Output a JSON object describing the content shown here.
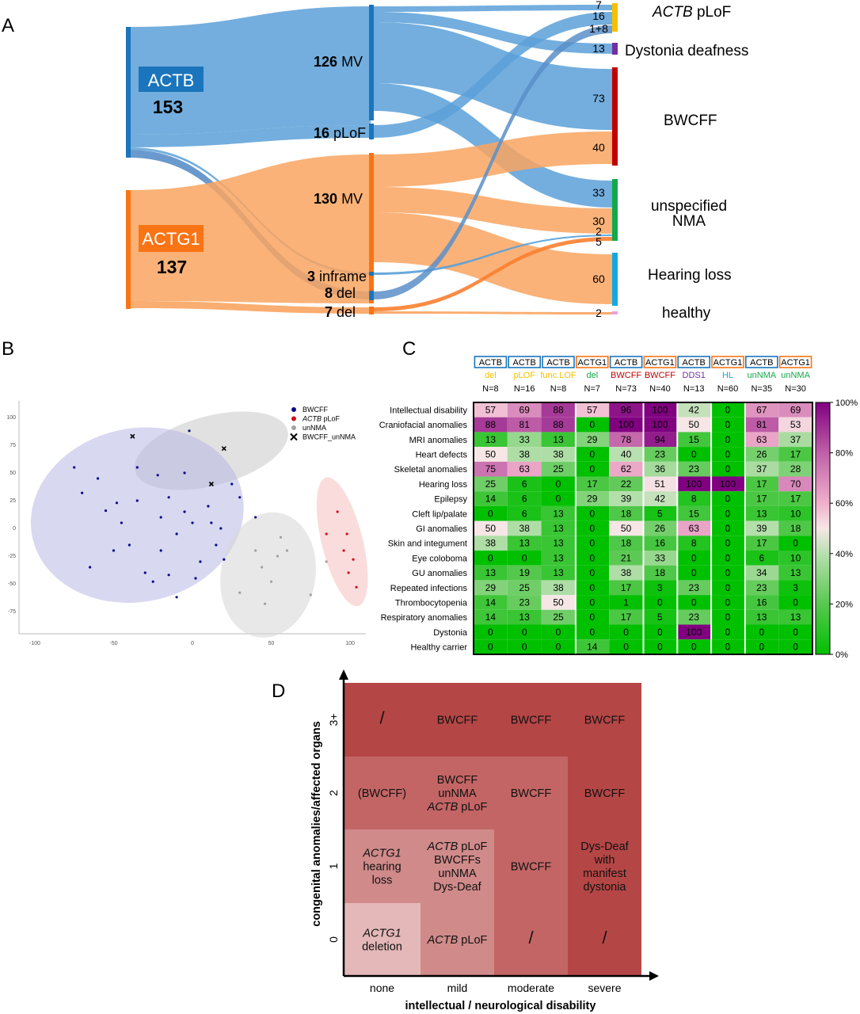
{
  "panels": {
    "a": "A",
    "b": "B",
    "c": "C",
    "d": "D"
  },
  "sankey": {
    "genes": [
      {
        "name": "ACTB",
        "count": "153",
        "color": "#1a75bc"
      },
      {
        "name": "ACTG1",
        "count": "137",
        "color": "#f97415"
      }
    ],
    "variants": [
      {
        "count": "126",
        "label": "MV"
      },
      {
        "count": "16",
        "label": "pLoF"
      },
      {
        "count": "130",
        "label": "MV"
      },
      {
        "count": "3",
        "label": "inframe"
      },
      {
        "count": "8",
        "label": "del"
      },
      {
        "count": "7",
        "label": "del"
      }
    ],
    "phenotypes": [
      {
        "label": "ACTB pLoF",
        "gene": "ACTB",
        "suffix": " pLoF",
        "color": "#f5c000"
      },
      {
        "label": "Dystonia deafness",
        "color": "#7030a0"
      },
      {
        "label": "BWCFF",
        "color": "#c00000"
      },
      {
        "label": "unspecified",
        "label2": "NMA",
        "color": "#13a84a"
      },
      {
        "label": "Hearing loss",
        "color": "#13a9e0"
      },
      {
        "label": "healthy",
        "color": "#e8a0e0"
      }
    ],
    "counts": [
      "7",
      "16",
      "1+8",
      "13",
      "73",
      "40",
      "33",
      "30",
      "2",
      "5",
      "60",
      "2"
    ]
  },
  "scatter": {
    "legend": [
      {
        "label": "BWCFF",
        "color": "#0a0a8a",
        "shape": "dot"
      },
      {
        "label": "ACTB pLoF",
        "italic": "ACTB",
        "rest": " pLoF",
        "color": "#d0101a",
        "shape": "dot"
      },
      {
        "label": "unNMA",
        "color": "#a0a0a0",
        "shape": "dot"
      },
      {
        "label": "BWCFF_unNMA",
        "color": "#000000",
        "shape": "cross"
      }
    ],
    "xticks": [
      "-100",
      "-50",
      "0",
      "50",
      "100"
    ],
    "yticks": [
      "100",
      "75",
      "50",
      "25",
      "0",
      "-25",
      "-50",
      "-75"
    ],
    "points": {
      "bwcff": [
        [
          -75,
          55
        ],
        [
          -70,
          32
        ],
        [
          -60,
          45
        ],
        [
          -55,
          16
        ],
        [
          -48,
          23
        ],
        [
          -45,
          5
        ],
        [
          -40,
          -15
        ],
        [
          -30,
          -40
        ],
        [
          -25,
          -48
        ],
        [
          -20,
          -20
        ],
        [
          -15,
          -42
        ],
        [
          -10,
          -5
        ],
        [
          -5,
          15
        ],
        [
          0,
          5
        ],
        [
          5,
          -30
        ],
        [
          10,
          20
        ],
        [
          15,
          -15
        ],
        [
          18,
          0
        ],
        [
          20,
          -28
        ],
        [
          25,
          40
        ],
        [
          -35,
          55
        ],
        [
          -22,
          48
        ],
        [
          -15,
          28
        ],
        [
          -5,
          50
        ],
        [
          -2,
          88
        ],
        [
          30,
          28
        ],
        [
          40,
          10
        ],
        [
          -65,
          -35
        ],
        [
          -50,
          -20
        ],
        [
          -35,
          25
        ],
        [
          -20,
          10
        ],
        [
          -10,
          -62
        ],
        [
          2,
          -45
        ],
        [
          12,
          5
        ]
      ],
      "actb_plof": [
        [
          85,
          -5
        ],
        [
          92,
          15
        ],
        [
          96,
          -20
        ],
        [
          98,
          -5
        ],
        [
          99,
          -40
        ],
        [
          102,
          -28
        ],
        [
          104,
          -53
        ]
      ],
      "unnma": [
        [
          40,
          -20
        ],
        [
          44,
          -35
        ],
        [
          46,
          -68
        ],
        [
          50,
          -48
        ],
        [
          54,
          -25
        ],
        [
          56,
          -8
        ],
        [
          30,
          -58
        ],
        [
          75,
          -60
        ],
        [
          85,
          -30
        ],
        [
          60,
          -20
        ]
      ],
      "cross": [
        [
          -38,
          83
        ],
        [
          20,
          72
        ],
        [
          12,
          40
        ]
      ]
    },
    "ellipses": {
      "grey_top": {
        "cx": 12,
        "cy": 70,
        "rx": 50,
        "ry": 22,
        "rot": -15
      },
      "blue": {
        "cx": -35,
        "cy": 12,
        "rx": 68,
        "ry": 55,
        "rot": -12
      },
      "grey": {
        "cx": 48,
        "cy": -42,
        "rx": 30,
        "ry": 40,
        "rot": 10
      },
      "red": {
        "cx": 95,
        "cy": -12,
        "rx": 13,
        "ry": 42,
        "rot": -14
      }
    }
  },
  "heatmap": {
    "columns": [
      {
        "gene": "ACTB",
        "type": "del",
        "n": "N=8",
        "type_color": "#f5c000",
        "box": "#1a75bc"
      },
      {
        "gene": "ACTB",
        "type": "pLOF",
        "n": "N=16",
        "type_color": "#f5c000",
        "box": "#1a75bc"
      },
      {
        "gene": "ACTB",
        "type": "func.LOF",
        "n": "N=8",
        "type_color": "#f5c000",
        "box": "#1a75bc"
      },
      {
        "gene": "ACTG1",
        "type": "del",
        "n": "N=7",
        "type_color": "#13a84a",
        "box": "#f97415"
      },
      {
        "gene": "ACTB",
        "type": "BWCFF",
        "n": "N=73",
        "type_color": "#c00000",
        "box": "#1a75bc"
      },
      {
        "gene": "ACTG1",
        "type": "BWCFF",
        "n": "N=40",
        "type_color": "#c00000",
        "box": "#f97415"
      },
      {
        "gene": "ACTB",
        "type": "DDS1",
        "n": "N=13",
        "type_color": "#7030a0",
        "box": "#1a75bc"
      },
      {
        "gene": "ACTG1",
        "type": "HL",
        "n": "N=60",
        "type_color": "#13a9e0",
        "box": "#f97415"
      },
      {
        "gene": "ACTB",
        "type": "unNMA",
        "n": "N=35",
        "type_color": "#13a84a",
        "box": "#1a75bc"
      },
      {
        "gene": "ACTG1",
        "type": "unNMA",
        "n": "N=30",
        "type_color": "#13a84a",
        "box": "#f97415"
      }
    ],
    "rows": [
      {
        "label": "Intellectual disability",
        "values": [
          57,
          69,
          88,
          57,
          96,
          100,
          42,
          0,
          67,
          69
        ]
      },
      {
        "label": "Craniofacial anomalies",
        "values": [
          88,
          81,
          88,
          0,
          100,
          100,
          50,
          0,
          81,
          53
        ]
      },
      {
        "label": "MRI anomalies",
        "values": [
          13,
          33,
          13,
          29,
          78,
          94,
          15,
          0,
          63,
          37
        ]
      },
      {
        "label": "Heart defects",
        "values": [
          50,
          38,
          38,
          0,
          40,
          23,
          0,
          0,
          26,
          17
        ]
      },
      {
        "label": "Skeletal anomalies",
        "values": [
          75,
          63,
          25,
          0,
          62,
          36,
          23,
          0,
          37,
          28
        ]
      },
      {
        "label": "Hearing loss",
        "values": [
          25,
          6,
          0,
          17,
          22,
          51,
          100,
          100,
          17,
          70
        ]
      },
      {
        "label": "Epilepsy",
        "values": [
          14,
          6,
          0,
          29,
          39,
          42,
          8,
          0,
          17,
          17
        ]
      },
      {
        "label": "Cleft lip/palate",
        "values": [
          0,
          6,
          13,
          0,
          18,
          5,
          15,
          0,
          13,
          10
        ]
      },
      {
        "label": "GI anomalies",
        "values": [
          50,
          38,
          13,
          0,
          50,
          26,
          63,
          0,
          39,
          18
        ]
      },
      {
        "label": "Skin and integument",
        "values": [
          38,
          13,
          13,
          0,
          18,
          16,
          8,
          0,
          17,
          0
        ]
      },
      {
        "label": "Eye coloboma",
        "values": [
          0,
          0,
          13,
          0,
          21,
          33,
          0,
          0,
          6,
          10
        ]
      },
      {
        "label": "GU anomalies",
        "values": [
          13,
          19,
          13,
          0,
          38,
          18,
          0,
          0,
          34,
          13
        ]
      },
      {
        "label": "Repeated infections",
        "values": [
          29,
          25,
          38,
          0,
          17,
          3,
          23,
          0,
          23,
          3
        ]
      },
      {
        "label": "Thrombocytopenia",
        "values": [
          14,
          23,
          50,
          0,
          1,
          0,
          0,
          0,
          16,
          0
        ]
      },
      {
        "label": "Respiratory anomalies",
        "values": [
          14,
          13,
          25,
          0,
          17,
          5,
          23,
          0,
          13,
          13
        ]
      },
      {
        "label": "Dystonia",
        "values": [
          0,
          0,
          0,
          0,
          0,
          0,
          100,
          0,
          0,
          0
        ]
      },
      {
        "label": "Healthy carrier",
        "values": [
          0,
          0,
          0,
          14,
          0,
          0,
          0,
          0,
          0,
          0
        ]
      }
    ],
    "colorbar": [
      "100%",
      "80%",
      "60%",
      "40%",
      "20%",
      "0%"
    ]
  },
  "grid": {
    "ylabel": "congenital anomalies/affected organs",
    "xlabel": "intellectual / neurological disability",
    "xticks": [
      "none",
      "mild",
      "moderate",
      "severe"
    ],
    "yticks": [
      "3+",
      "2",
      "1",
      "0"
    ],
    "cells": [
      {
        "row": 0,
        "col": 0,
        "lines": [
          "/"
        ]
      },
      {
        "row": 0,
        "col": 1,
        "lines": [
          "BWCFF"
        ]
      },
      {
        "row": 0,
        "col": 2,
        "lines": [
          "BWCFF"
        ]
      },
      {
        "row": 0,
        "col": 3,
        "lines": [
          "BWCFF"
        ]
      },
      {
        "row": 1,
        "col": 0,
        "lines": [
          "(BWCFF)"
        ]
      },
      {
        "row": 1,
        "col": 1,
        "lines": [
          "BWCFF",
          "unNMA",
          "ACTB pLoF"
        ]
      },
      {
        "row": 1,
        "col": 2,
        "lines": [
          "BWCFF"
        ]
      },
      {
        "row": 1,
        "col": 3,
        "lines": [
          "BWCFF"
        ]
      },
      {
        "row": 2,
        "col": 0,
        "lines": [
          "ACTG1",
          "hearing",
          "loss"
        ]
      },
      {
        "row": 2,
        "col": 1,
        "lines": [
          "ACTB pLoF",
          "BWCFFs",
          "unNMA",
          "Dys-Deaf"
        ]
      },
      {
        "row": 2,
        "col": 2,
        "lines": [
          "BWCFF"
        ]
      },
      {
        "row": 2,
        "col": 3,
        "lines": [
          "Dys-Deaf",
          "with",
          "manifest",
          "dystonia"
        ]
      },
      {
        "row": 3,
        "col": 0,
        "lines": [
          "ACTG1",
          "deletion"
        ]
      },
      {
        "row": 3,
        "col": 1,
        "lines": [
          "ACTB pLoF"
        ]
      },
      {
        "row": 3,
        "col": 2,
        "lines": [
          "/"
        ]
      },
      {
        "row": 3,
        "col": 3,
        "lines": [
          "/"
        ]
      }
    ],
    "colors": [
      "#e4b8b8",
      "#d08a8a",
      "#c36565",
      "#b54646"
    ]
  }
}
